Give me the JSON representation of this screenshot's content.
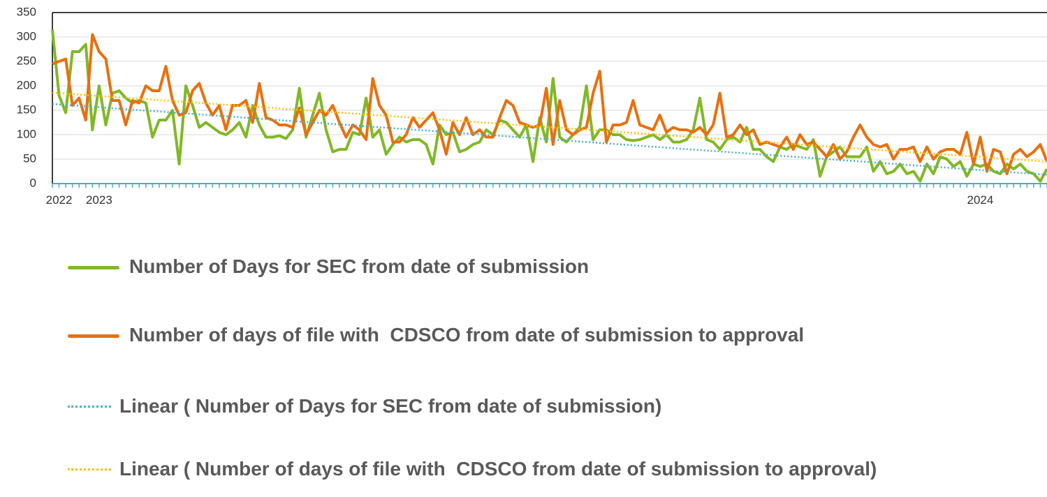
{
  "chart_data": {
    "type": "line",
    "categories": [
      null,
      "2022",
      null,
      null,
      null,
      null,
      null,
      "2023",
      null,
      null,
      null,
      null,
      null,
      null,
      null,
      null,
      null,
      null,
      null,
      null,
      null,
      null,
      null,
      null,
      null,
      null,
      null,
      null,
      null,
      null,
      null,
      null,
      null,
      null,
      null,
      null,
      null,
      null,
      null,
      null,
      null,
      null,
      null,
      null,
      null,
      null,
      null,
      null,
      null,
      null,
      null,
      null,
      null,
      null,
      null,
      null,
      null,
      null,
      null,
      null,
      null,
      null,
      null,
      null,
      null,
      null,
      null,
      null,
      null,
      null,
      null,
      null,
      null,
      null,
      null,
      null,
      null,
      null,
      null,
      null,
      null,
      null,
      null,
      null,
      null,
      null,
      null,
      null,
      null,
      null,
      null,
      null,
      null,
      null,
      null,
      null,
      null,
      null,
      null,
      null,
      null,
      null,
      null,
      null,
      null,
      null,
      null,
      null,
      null,
      null,
      null,
      null,
      null,
      null,
      null,
      null,
      null,
      null,
      null,
      null,
      null,
      null,
      null,
      null,
      null,
      null,
      null,
      null,
      null,
      null,
      null,
      null,
      null,
      null,
      null,
      null,
      null,
      null,
      null,
      "2024",
      null,
      null,
      null,
      null,
      null,
      null,
      null,
      null,
      null,
      null
    ],
    "series": [
      {
        "name": "Number of Days for SEC from date of submission",
        "color": "#80b827",
        "values": [
          315,
          180,
          145,
          270,
          270,
          285,
          110,
          200,
          120,
          185,
          190,
          175,
          165,
          170,
          165,
          95,
          130,
          130,
          150,
          40,
          200,
          160,
          115,
          125,
          115,
          105,
          100,
          110,
          125,
          95,
          160,
          120,
          95,
          95,
          98,
          92,
          110,
          195,
          95,
          140,
          185,
          110,
          65,
          70,
          70,
          105,
          100,
          175,
          95,
          110,
          60,
          80,
          95,
          85,
          90,
          90,
          80,
          40,
          120,
          100,
          105,
          65,
          70,
          80,
          85,
          110,
          100,
          130,
          125,
          110,
          95,
          120,
          45,
          135,
          85,
          215,
          95,
          85,
          100,
          115,
          200,
          90,
          110,
          110,
          100,
          100,
          90,
          88,
          90,
          95,
          100,
          90,
          100,
          85,
          85,
          90,
          110,
          175,
          90,
          85,
          70,
          90,
          95,
          85,
          115,
          70,
          70,
          55,
          45,
          75,
          70,
          80,
          75,
          70,
          90,
          15,
          55,
          65,
          75,
          55,
          55,
          55,
          75,
          25,
          45,
          20,
          25,
          40,
          20,
          25,
          5,
          40,
          20,
          55,
          50,
          35,
          45,
          15,
          40,
          35,
          40,
          25,
          20,
          40,
          30,
          40,
          25,
          20,
          5,
          30
        ]
      },
      {
        "name": "Number of days of file with  CDSCO from date of submission to approval",
        "color": "#e8700f",
        "values": [
          245,
          250,
          255,
          160,
          175,
          130,
          305,
          270,
          255,
          170,
          170,
          120,
          170,
          165,
          200,
          190,
          190,
          240,
          170,
          140,
          145,
          190,
          205,
          165,
          140,
          160,
          110,
          160,
          160,
          170,
          125,
          205,
          135,
          130,
          120,
          120,
          115,
          155,
          100,
          125,
          150,
          140,
          160,
          125,
          95,
          120,
          110,
          90,
          215,
          160,
          140,
          85,
          85,
          100,
          135,
          115,
          130,
          145,
          110,
          60,
          125,
          100,
          135,
          100,
          110,
          95,
          95,
          135,
          170,
          160,
          125,
          120,
          115,
          120,
          195,
          80,
          170,
          110,
          100,
          110,
          115,
          185,
          230,
          85,
          120,
          120,
          125,
          170,
          120,
          115,
          110,
          140,
          105,
          115,
          110,
          110,
          105,
          115,
          100,
          120,
          185,
          95,
          100,
          120,
          100,
          110,
          80,
          85,
          80,
          75,
          95,
          70,
          100,
          80,
          85,
          70,
          55,
          80,
          50,
          65,
          95,
          120,
          95,
          80,
          75,
          80,
          50,
          70,
          70,
          75,
          45,
          75,
          50,
          65,
          70,
          70,
          60,
          105,
          40,
          95,
          25,
          70,
          65,
          20,
          60,
          70,
          55,
          65,
          80,
          45
        ]
      }
    ],
    "trendlines": [
      {
        "name": "Linear ( Number of Days for SEC from date of submission)",
        "color": "#4bacc6",
        "values": [
          163,
          18
        ]
      },
      {
        "name": "Linear ( Number of days of file with  CDSCO from date of submission to approval)",
        "color": "#ffc000",
        "values": [
          186,
          45
        ]
      }
    ],
    "ylim": [
      0,
      350
    ],
    "yticks": [
      0,
      50,
      100,
      150,
      200,
      250,
      300,
      350
    ],
    "grid": true
  }
}
